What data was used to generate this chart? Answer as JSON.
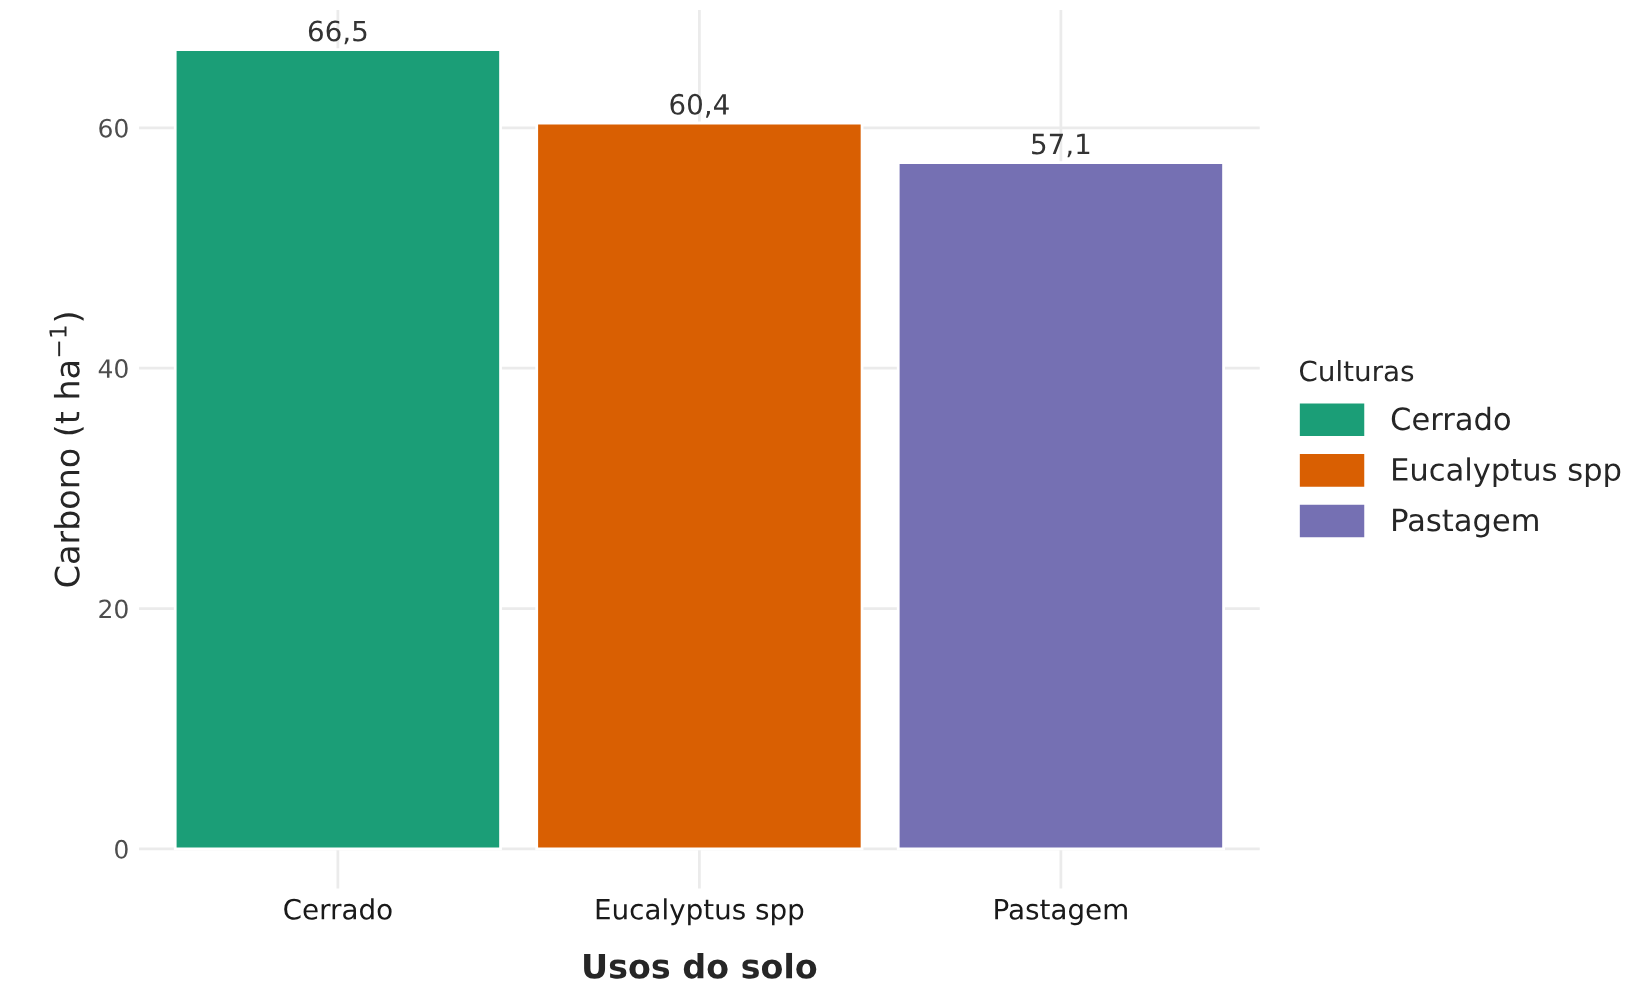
{
  "chart_data": {
    "type": "bar",
    "xlabel": "Usos do solo",
    "ylabel": "Carbono (t ha$^{−1}$)",
    "legend_title": "Culturas",
    "categories": [
      "Cerrado",
      "Eucalyptus spp",
      "Pastagem"
    ],
    "series": [
      {
        "name": "Cerrado",
        "color": "#1b9e77",
        "values": [
          66.5,
          null,
          null
        ],
        "value_labels": [
          "66,5",
          null,
          null
        ]
      },
      {
        "name": "Eucalyptus spp",
        "color": "#d95f02",
        "values": [
          null,
          60.4,
          null
        ],
        "value_labels": [
          null,
          "60,4",
          null
        ]
      },
      {
        "name": "Pastagem",
        "color": "#7570b3",
        "values": [
          null,
          null,
          57.1
        ],
        "value_labels": [
          null,
          null,
          "57,1"
        ]
      }
    ],
    "ylim": [
      -3.3,
      69.8
    ],
    "yticks": [
      0,
      20,
      40,
      60
    ],
    "grid": true,
    "legend": "right"
  }
}
